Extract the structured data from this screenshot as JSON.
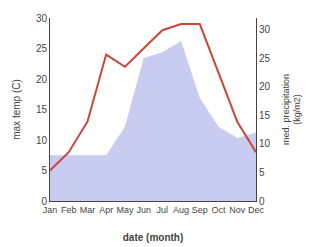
{
  "chart_data": {
    "type": "line",
    "xlabel": "date (month)",
    "ylabel": "max temp (C)",
    "y2label": "med. precipitation\n(kg/m2)",
    "categories": [
      "Jan",
      "Feb",
      "Mar",
      "Apr",
      "May",
      "Jun",
      "Jul",
      "Aug",
      "Sep",
      "Oct",
      "Nov",
      "Dec"
    ],
    "series": [
      {
        "type": "area",
        "axis": "y2",
        "color": "#c8ccf0",
        "values": [
          8,
          8,
          8,
          8,
          13,
          25,
          26,
          28,
          18,
          13,
          11,
          12
        ]
      },
      {
        "type": "line",
        "color": "#c8463a",
        "values": [
          5,
          8,
          13,
          24,
          22,
          25,
          28,
          29,
          29,
          21,
          13,
          8
        ]
      }
    ],
    "ylim": [
      0,
      30
    ],
    "yticks": [
      0,
      5,
      10,
      15,
      20,
      25,
      30
    ],
    "y2lim": [
      0,
      32
    ],
    "y2ticks": [
      0,
      5,
      10,
      15,
      20,
      25,
      30
    ],
    "grid": false
  }
}
